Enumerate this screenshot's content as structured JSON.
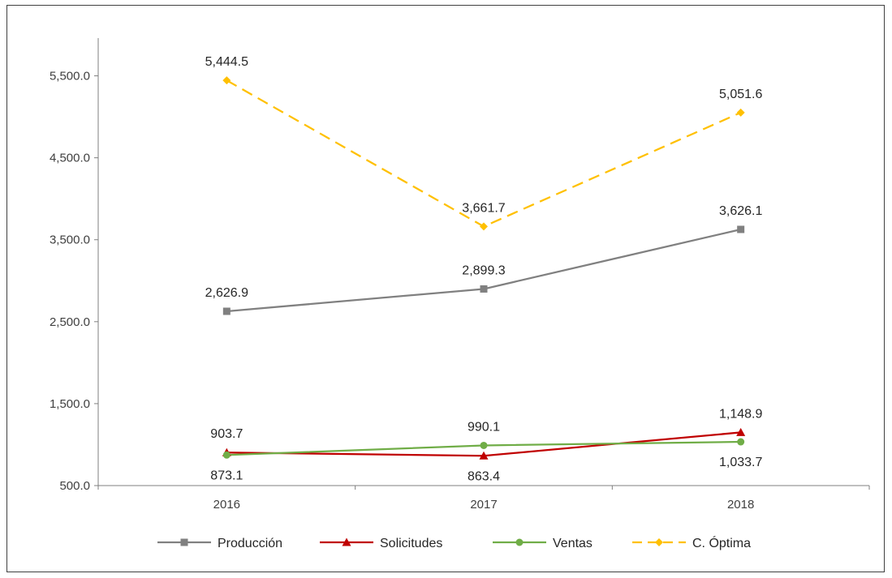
{
  "chart_data": {
    "type": "line",
    "categories": [
      "2016",
      "2017",
      "2018"
    ],
    "ylim": [
      500,
      6000
    ],
    "yticks": [
      500,
      1500,
      2500,
      3500,
      4500,
      5500
    ],
    "ytick_labels": [
      "500.0",
      "1,500.0",
      "2,500.0",
      "3,500.0",
      "4,500.0",
      "5,500.0"
    ],
    "grid": false,
    "legend_position": "bottom",
    "series": [
      {
        "name": "Producción",
        "values": [
          2626.9,
          2899.3,
          3626.1
        ],
        "labels": [
          "2,626.9",
          "2,899.3",
          "3,626.1"
        ],
        "color": "#808080",
        "marker": "square",
        "dash": "solid",
        "label_pos": [
          "above",
          "above",
          "above"
        ]
      },
      {
        "name": "Solicitudes",
        "values": [
          903.7,
          863.4,
          1148.9
        ],
        "labels": [
          "903.7",
          "863.4",
          "1,148.9"
        ],
        "color": "#C00000",
        "marker": "triangle",
        "dash": "solid",
        "label_pos": [
          "above",
          "below",
          "above"
        ]
      },
      {
        "name": "Ventas",
        "values": [
          873.1,
          990.1,
          1033.7
        ],
        "labels": [
          "873.1",
          "990.1",
          "1,033.7"
        ],
        "color": "#70AD47",
        "marker": "circle",
        "dash": "solid",
        "label_pos": [
          "below",
          "above",
          "below"
        ]
      },
      {
        "name": "C. Óptima",
        "values": [
          5444.5,
          3661.7,
          5051.6
        ],
        "labels": [
          "5,444.5",
          "3,661.7",
          "5,051.6"
        ],
        "color": "#FFC000",
        "marker": "diamond",
        "dash": "dashed",
        "label_pos": [
          "above",
          "above",
          "above"
        ]
      }
    ]
  }
}
